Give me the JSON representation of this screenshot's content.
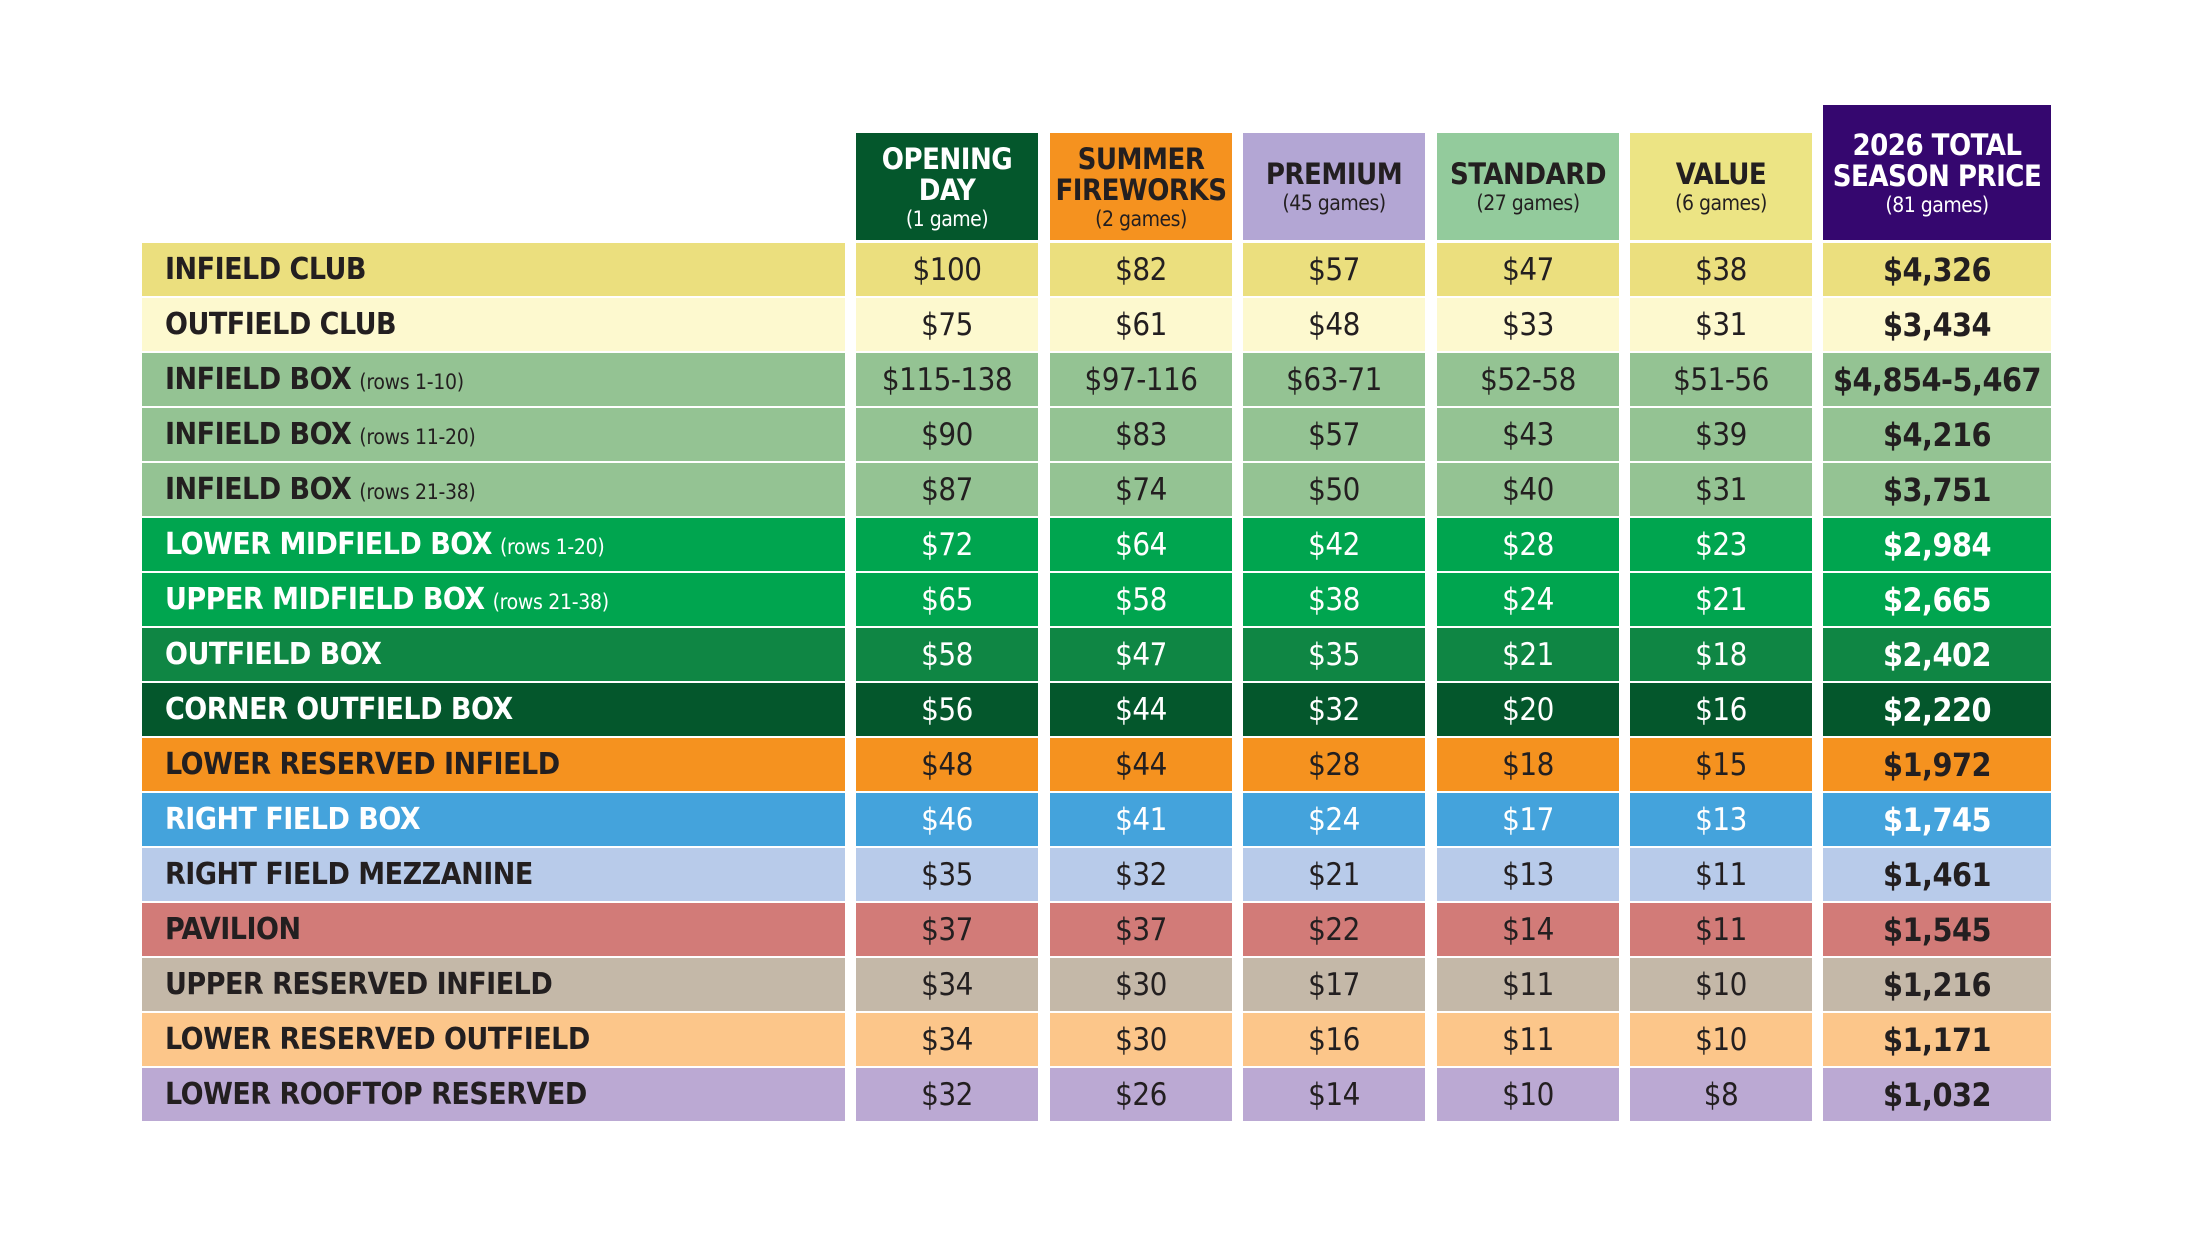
{
  "columns": [
    {
      "key": "opening_day",
      "title_lines": [
        "OPENING",
        "DAY"
      ],
      "subtitle": "(1 game)",
      "bg": "#04572c",
      "fg": "#ffffff"
    },
    {
      "key": "summer_fireworks",
      "title_lines": [
        "SUMMER",
        "FIREWORKS"
      ],
      "subtitle": "(2 games)",
      "bg": "#f5921f",
      "fg": "#231f20"
    },
    {
      "key": "premium",
      "title_lines": [
        "PREMIUM"
      ],
      "subtitle": "(45 games)",
      "bg": "#b3a6d4",
      "fg": "#231f20"
    },
    {
      "key": "standard",
      "title_lines": [
        "STANDARD"
      ],
      "subtitle": "(27 games)",
      "bg": "#93cb9c",
      "fg": "#231f20"
    },
    {
      "key": "value",
      "title_lines": [
        "VALUE"
      ],
      "subtitle": "(6 games)",
      "bg": "#ece484",
      "fg": "#231f20"
    },
    {
      "key": "total",
      "title_lines": [
        "2026 TOTAL",
        "SEASON PRICE"
      ],
      "subtitle": "(81 games)",
      "bg": "#35076f",
      "fg": "#ffffff"
    }
  ],
  "rows": [
    {
      "name": "INFIELD CLUB",
      "sub": "",
      "bg": "#ebdf7e",
      "fg": "#231f20",
      "prices": [
        "$100",
        "$82",
        "$57",
        "$47",
        "$38",
        "$4,326"
      ]
    },
    {
      "name": "OUTFIELD CLUB",
      "sub": "",
      "bg": "#fdf9cf",
      "fg": "#231f20",
      "prices": [
        "$75",
        "$61",
        "$48",
        "$33",
        "$31",
        "$3,434"
      ]
    },
    {
      "name": "INFIELD BOX",
      "sub": "(rows 1-10)",
      "bg": "#94c393",
      "fg": "#231f20",
      "prices": [
        "$115-138",
        "$97-116",
        "$63-71",
        "$52-58",
        "$51-56",
        "$4,854-5,467"
      ]
    },
    {
      "name": "INFIELD BOX",
      "sub": "(rows 11-20)",
      "bg": "#94c393",
      "fg": "#231f20",
      "prices": [
        "$90",
        "$83",
        "$57",
        "$43",
        "$39",
        "$4,216"
      ]
    },
    {
      "name": "INFIELD BOX",
      "sub": "(rows 21-38)",
      "bg": "#94c393",
      "fg": "#231f20",
      "prices": [
        "$87",
        "$74",
        "$50",
        "$40",
        "$31",
        "$3,751"
      ]
    },
    {
      "name": "LOWER MIDFIELD BOX",
      "sub": "(rows 1-20)",
      "bg": "#00a54f",
      "fg": "#ffffff",
      "prices": [
        "$72",
        "$64",
        "$42",
        "$28",
        "$23",
        "$2,984"
      ]
    },
    {
      "name": "UPPER MIDFIELD BOX",
      "sub": "(rows 21-38)",
      "bg": "#00a54f",
      "fg": "#ffffff",
      "prices": [
        "$65",
        "$58",
        "$38",
        "$24",
        "$21",
        "$2,665"
      ]
    },
    {
      "name": "OUTFIELD BOX",
      "sub": "",
      "bg": "#0f8644",
      "fg": "#ffffff",
      "prices": [
        "$58",
        "$47",
        "$35",
        "$21",
        "$18",
        "$2,402"
      ]
    },
    {
      "name": "CORNER OUTFIELD BOX",
      "sub": "",
      "bg": "#04572c",
      "fg": "#ffffff",
      "prices": [
        "$56",
        "$44",
        "$32",
        "$20",
        "$16",
        "$2,220"
      ]
    },
    {
      "name": "LOWER RESERVED INFIELD",
      "sub": "",
      "bg": "#f5921f",
      "fg": "#231f20",
      "prices": [
        "$48",
        "$44",
        "$28",
        "$18",
        "$15",
        "$1,972"
      ]
    },
    {
      "name": "RIGHT FIELD BOX",
      "sub": "",
      "bg": "#44a3dc",
      "fg": "#ffffff",
      "prices": [
        "$46",
        "$41",
        "$24",
        "$17",
        "$13",
        "$1,745"
      ]
    },
    {
      "name": "RIGHT FIELD MEZZANINE",
      "sub": "",
      "bg": "#b8cbea",
      "fg": "#231f20",
      "prices": [
        "$35",
        "$32",
        "$21",
        "$13",
        "$11",
        "$1,461"
      ]
    },
    {
      "name": "PAVILION",
      "sub": "",
      "bg": "#d27b78",
      "fg": "#231f20",
      "prices": [
        "$37",
        "$37",
        "$22",
        "$14",
        "$11",
        "$1,545"
      ]
    },
    {
      "name": "UPPER RESERVED INFIELD",
      "sub": "",
      "bg": "#c4b8a8",
      "fg": "#231f20",
      "prices": [
        "$34",
        "$30",
        "$17",
        "$11",
        "$10",
        "$1,216"
      ]
    },
    {
      "name": "LOWER RESERVED OUTFIELD",
      "sub": "",
      "bg": "#fcc68a",
      "fg": "#231f20",
      "prices": [
        "$34",
        "$30",
        "$16",
        "$11",
        "$10",
        "$1,171"
      ]
    },
    {
      "name": "LOWER ROOFTOP RESERVED",
      "sub": "",
      "bg": "#bba9d3",
      "fg": "#231f20",
      "prices": [
        "$32",
        "$26",
        "$14",
        "$10",
        "$8",
        "$1,032"
      ]
    }
  ]
}
